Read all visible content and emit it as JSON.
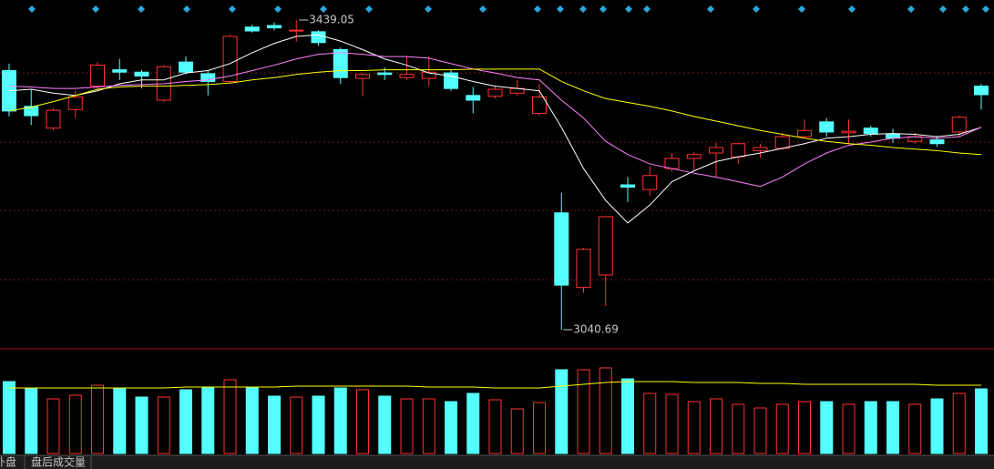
{
  "chart_data": {
    "type": "candlestick",
    "open": [
      3374,
      3328,
      3300,
      3324,
      3354,
      3375,
      3372,
      3336,
      3385,
      3370,
      3360,
      3430,
      3432,
      3425,
      3424,
      3401,
      3364,
      3371,
      3365,
      3364,
      3371,
      3342,
      3341,
      3345,
      3319,
      3191,
      3095,
      3111,
      3227,
      3221,
      3248,
      3261,
      3268,
      3263,
      3271,
      3274,
      3289,
      3308,
      3294,
      3300,
      3292,
      3283,
      3285,
      3295,
      3354
    ],
    "high": [
      3383,
      3350,
      3326,
      3348,
      3385,
      3389,
      3375,
      3381,
      3392,
      3374,
      3420,
      3433,
      3436,
      3439.05,
      3426,
      3404,
      3371,
      3378,
      3392,
      3392,
      3376,
      3353,
      3355,
      3362,
      3357,
      3217,
      3146,
      3187,
      3237,
      3251,
      3268,
      3269,
      3281,
      3281,
      3280,
      3294,
      3311,
      3313,
      3311,
      3303,
      3299,
      3294,
      3290,
      3316,
      3357
    ],
    "low": [
      3315,
      3304,
      3297,
      3313,
      3348,
      3362,
      3351,
      3334,
      3369,
      3342,
      3357,
      3423,
      3426,
      3411,
      3406,
      3357,
      3341,
      3362,
      3362,
      3354,
      3348,
      3319,
      3338,
      3342,
      3316,
      3040.69,
      3088,
      3071,
      3205,
      3213,
      3244,
      3246,
      3237,
      3254,
      3262,
      3272,
      3287,
      3289,
      3280,
      3289,
      3281,
      3280,
      3276,
      3289,
      3324
    ],
    "close": [
      3322,
      3316,
      3323,
      3340,
      3381,
      3372,
      3367,
      3379,
      3372,
      3360,
      3418,
      3425,
      3429,
      3426,
      3410,
      3365,
      3369,
      3369,
      3369,
      3372,
      3351,
      3336,
      3350,
      3351,
      3340,
      3098,
      3144,
      3186,
      3224,
      3239,
      3261,
      3266,
      3275,
      3280,
      3275,
      3289,
      3297,
      3295,
      3296,
      3293,
      3287,
      3289,
      3280,
      3314,
      3343
    ],
    "up_color": "#ff3232",
    "down_color": "#54ffff",
    "ylim": [
      3019.62,
      3464.83
    ],
    "grid": true,
    "ygrid": [
      3371,
      3282,
      3194,
      3105
    ],
    "moving_averages": [
      {
        "color": "#ffffff",
        "values": [
          3348,
          3350,
          3345,
          3342,
          3348,
          3357,
          3362,
          3362,
          3371,
          3374,
          3383,
          3397,
          3409,
          3418,
          3420,
          3412,
          3401,
          3389,
          3381,
          3371,
          3367,
          3360,
          3354,
          3351,
          3348,
          3301,
          3248,
          3207,
          3178,
          3201,
          3231,
          3245,
          3257,
          3263,
          3268,
          3274,
          3280,
          3287,
          3289,
          3292,
          3293,
          3292,
          3289,
          3292,
          3301
        ]
      },
      {
        "color": "#ff80ff",
        "values": [
          3354,
          3353,
          3351,
          3351,
          3353,
          3355,
          3356,
          3357,
          3360,
          3362,
          3367,
          3374,
          3381,
          3389,
          3395,
          3397,
          3395,
          3392,
          3392,
          3390,
          3383,
          3376,
          3371,
          3365,
          3362,
          3336,
          3313,
          3283,
          3266,
          3254,
          3248,
          3242,
          3237,
          3231,
          3225,
          3237,
          3254,
          3268,
          3278,
          3282,
          3287,
          3289,
          3287,
          3289,
          3301
        ]
      },
      {
        "color": "#ffff00",
        "values": [
          3322,
          3327,
          3334,
          3342,
          3350,
          3353,
          3354,
          3354,
          3355,
          3356,
          3358,
          3362,
          3365,
          3369,
          3372,
          3374,
          3374,
          3375,
          3375,
          3375,
          3375,
          3376,
          3376,
          3376,
          3376,
          3360,
          3348,
          3338,
          3333,
          3328,
          3322,
          3315,
          3309,
          3303,
          3297,
          3292,
          3287,
          3283,
          3280,
          3278,
          3275,
          3273,
          3271,
          3268,
          3266
        ]
      }
    ],
    "volume": {
      "values": [
        79,
        71,
        60,
        64,
        75,
        71,
        62,
        62,
        70,
        72,
        81,
        72,
        63,
        62,
        63,
        72,
        70,
        63,
        60,
        60,
        57,
        66,
        59,
        49,
        56,
        92,
        92,
        94,
        82,
        66,
        65,
        57,
        60,
        54,
        50,
        54,
        57,
        57,
        54,
        57,
        57,
        54,
        60,
        66,
        71
      ],
      "ylim": [
        0,
        113
      ],
      "ma": {
        "color": "#ffff00",
        "values": [
          72,
          72,
          72,
          72,
          72,
          72,
          72,
          72,
          73,
          73,
          73,
          73,
          73,
          74,
          74,
          74,
          74,
          74,
          74,
          73,
          73,
          73,
          72,
          72,
          72,
          74,
          76,
          78,
          79,
          79,
          79,
          78,
          78,
          78,
          77,
          77,
          76,
          76,
          76,
          76,
          76,
          76,
          75,
          75,
          75
        ]
      }
    }
  },
  "tabs": [
    "外盘",
    "盘后成交量"
  ]
}
